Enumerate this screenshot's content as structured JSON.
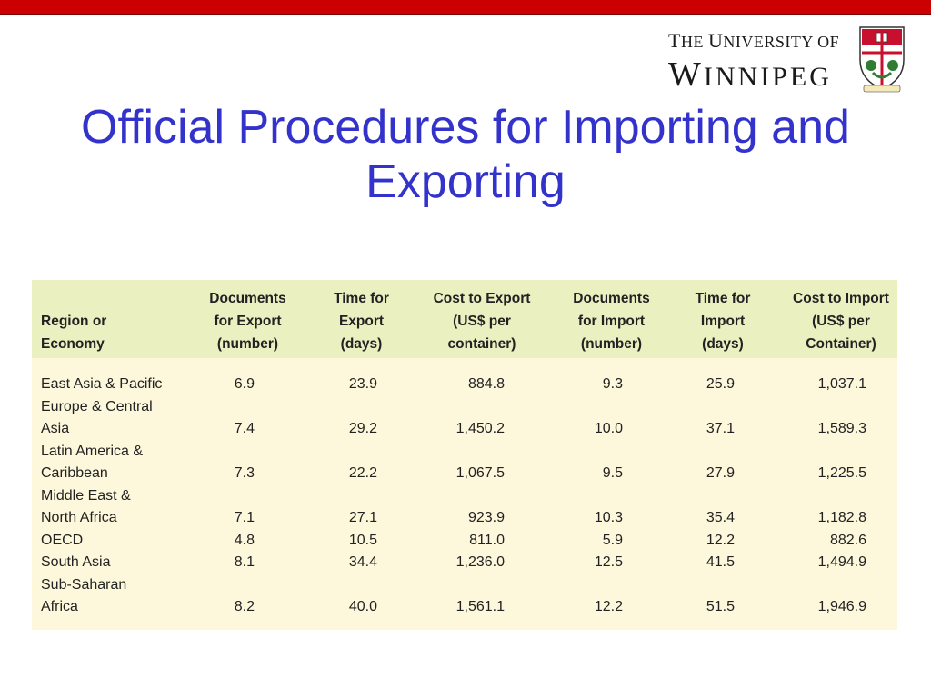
{
  "slide": {
    "title": "Official Procedures for Importing and Exporting"
  },
  "logo": {
    "line1": "The University of",
    "line2": "Winnipeg"
  },
  "table": {
    "headers": [
      "Region or\nEconomy",
      "Documents\nfor Export\n(number)",
      "Time for\nExport\n(days)",
      "Cost to Export\n(US$ per\ncontainer)",
      "Documents\nfor Import\n(number)",
      "Time for\nImport\n(days)",
      "Cost to Import\n(US$ per\nContainer)"
    ],
    "rows": [
      {
        "region": "East Asia & Pacific",
        "doc_export": "6.9",
        "time_export": "23.9",
        "cost_export": "884.8",
        "doc_import": "9.3",
        "time_import": "25.9",
        "cost_import": "1,037.1"
      },
      {
        "region": "Europe & Central\nAsia",
        "doc_export": "7.4",
        "time_export": "29.2",
        "cost_export": "1,450.2",
        "doc_import": "10.0",
        "time_import": "37.1",
        "cost_import": "1,589.3"
      },
      {
        "region": "Latin America &\nCaribbean",
        "doc_export": "7.3",
        "time_export": "22.2",
        "cost_export": "1,067.5",
        "doc_import": "9.5",
        "time_import": "27.9",
        "cost_import": "1,225.5"
      },
      {
        "region": "Middle East &\nNorth Africa",
        "doc_export": "7.1",
        "time_export": "27.1",
        "cost_export": "923.9",
        "doc_import": "10.3",
        "time_import": "35.4",
        "cost_import": "1,182.8"
      },
      {
        "region": "OECD",
        "doc_export": "4.8",
        "time_export": "10.5",
        "cost_export": "811.0",
        "doc_import": "5.9",
        "time_import": "12.2",
        "cost_import": "882.6"
      },
      {
        "region": "South Asia",
        "doc_export": "8.1",
        "time_export": "34.4",
        "cost_export": "1,236.0",
        "doc_import": "12.5",
        "time_import": "41.5",
        "cost_import": "1,494.9"
      },
      {
        "region": "Sub-Saharan\nAfrica",
        "doc_export": "8.2",
        "time_export": "40.0",
        "cost_export": "1,561.1",
        "doc_import": "12.2",
        "time_import": "51.5",
        "cost_import": "1,946.9"
      }
    ]
  }
}
